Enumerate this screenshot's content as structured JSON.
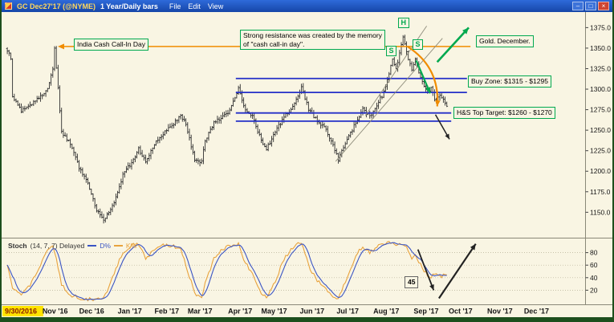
{
  "window": {
    "title_symbol": "GC Dec27'17 (@NYME)",
    "title_period": "1 Year/Daily bars",
    "menus": [
      "File",
      "Edit",
      "View"
    ],
    "controls": {
      "minimize": "–",
      "maximize": "□",
      "close": "×"
    }
  },
  "annotations": {
    "india": "India Cash Call-In Day",
    "resistance_line1": "Strong resistance was created by the memory",
    "resistance_line2": "of \"cash call-in day\".",
    "gold_december": "Gold. December.",
    "buy_zone": "Buy Zone: $1315 - $1295",
    "hs_target": "H&S Top Target: $1260 - $1270",
    "head": "H",
    "shoulder_left": "S",
    "shoulder_right": "S",
    "stoch_value": "45"
  },
  "stoch_panel": {
    "name": "Stoch",
    "params": "(14, 7, 7) Delayed",
    "series": [
      {
        "label": "D%"
      },
      {
        "label": "K%"
      }
    ]
  },
  "colors": {
    "background": "#f9f5e3",
    "titlebar": "#1e57c8",
    "bar": "#2f2f2f",
    "annotation_green": "#00a94f",
    "zone_blue": "#2430c8",
    "orange": "#f08c00",
    "stoch_d": "#3b55c4",
    "stoch_k": "#e8a33d",
    "highlight_yellow": "#ffe400",
    "highlight_text": "#8b1a00",
    "frame_green": "#1d4f1d"
  },
  "chart_data": {
    "type": "ohlc-bars+stochastic",
    "title": "GC Dec27'17 (@NYME) 1 Year/Daily bars",
    "price_axis": {
      "min": 1120,
      "max": 1392,
      "ticks": [
        1375,
        1350,
        1325,
        1300,
        1275,
        1250,
        1225,
        1200,
        1175,
        1150
      ]
    },
    "x_axis": {
      "total_days": 330,
      "data_end_day": 251,
      "labels": [
        {
          "text": "9/30/2016",
          "day": 0,
          "highlight": true
        },
        {
          "text": "Nov '16",
          "day": 21
        },
        {
          "text": "Dec '16",
          "day": 42
        },
        {
          "text": "Jan '17",
          "day": 64
        },
        {
          "text": "Feb '17",
          "day": 85
        },
        {
          "text": "Mar '17",
          "day": 104
        },
        {
          "text": "Apr '17",
          "day": 127
        },
        {
          "text": "May '17",
          "day": 146
        },
        {
          "text": "Jun '17",
          "day": 168
        },
        {
          "text": "Jul '17",
          "day": 189
        },
        {
          "text": "Aug '17",
          "day": 210
        },
        {
          "text": "Sep '17",
          "day": 233
        },
        {
          "text": "Oct '17",
          "day": 253
        },
        {
          "text": "Nov '17",
          "day": 275
        },
        {
          "text": "Dec '17",
          "day": 296
        }
      ]
    },
    "price_anchors": [
      [
        0,
        1348
      ],
      [
        2,
        1336
      ],
      [
        3,
        1292
      ],
      [
        8,
        1274
      ],
      [
        13,
        1281
      ],
      [
        18,
        1289
      ],
      [
        23,
        1301
      ],
      [
        26,
        1325
      ],
      [
        27,
        1351
      ],
      [
        29,
        1300
      ],
      [
        31,
        1248
      ],
      [
        36,
        1234
      ],
      [
        41,
        1205
      ],
      [
        46,
        1187
      ],
      [
        51,
        1152
      ],
      [
        55,
        1140
      ],
      [
        58,
        1150
      ],
      [
        62,
        1168
      ],
      [
        66,
        1196
      ],
      [
        71,
        1211
      ],
      [
        75,
        1227
      ],
      [
        79,
        1211
      ],
      [
        84,
        1234
      ],
      [
        89,
        1246
      ],
      [
        94,
        1256
      ],
      [
        99,
        1268
      ],
      [
        102,
        1258
      ],
      [
        107,
        1214
      ],
      [
        111,
        1211
      ],
      [
        113,
        1238
      ],
      [
        118,
        1259
      ],
      [
        122,
        1265
      ],
      [
        126,
        1271
      ],
      [
        130,
        1288
      ],
      [
        132,
        1301
      ],
      [
        135,
        1278
      ],
      [
        140,
        1267
      ],
      [
        145,
        1238
      ],
      [
        148,
        1227
      ],
      [
        153,
        1248
      ],
      [
        158,
        1266
      ],
      [
        163,
        1278
      ],
      [
        166,
        1292
      ],
      [
        168,
        1303
      ],
      [
        172,
        1275
      ],
      [
        177,
        1261
      ],
      [
        182,
        1251
      ],
      [
        186,
        1232
      ],
      [
        189,
        1214
      ],
      [
        194,
        1239
      ],
      [
        199,
        1259
      ],
      [
        203,
        1275
      ],
      [
        207,
        1267
      ],
      [
        211,
        1281
      ],
      [
        214,
        1292
      ],
      [
        218,
        1318
      ],
      [
        220,
        1338
      ],
      [
        222,
        1324
      ],
      [
        224,
        1344
      ],
      [
        226,
        1363
      ],
      [
        227,
        1355
      ],
      [
        229,
        1337
      ],
      [
        231,
        1325
      ],
      [
        233,
        1338
      ],
      [
        235,
        1321
      ],
      [
        238,
        1305
      ],
      [
        240,
        1296
      ],
      [
        242,
        1303
      ],
      [
        244,
        1287
      ],
      [
        247,
        1293
      ],
      [
        249,
        1286
      ],
      [
        251,
        1278
      ]
    ],
    "stoch": {
      "ticks": [
        80,
        60,
        40,
        20
      ],
      "k_anchors": [
        [
          0,
          62
        ],
        [
          3,
          25
        ],
        [
          8,
          10
        ],
        [
          13,
          28
        ],
        [
          18,
          55
        ],
        [
          23,
          82
        ],
        [
          26,
          92
        ],
        [
          28,
          70
        ],
        [
          31,
          30
        ],
        [
          36,
          12
        ],
        [
          41,
          8
        ],
        [
          46,
          6
        ],
        [
          51,
          5
        ],
        [
          55,
          8
        ],
        [
          58,
          25
        ],
        [
          62,
          55
        ],
        [
          66,
          80
        ],
        [
          71,
          92
        ],
        [
          75,
          94
        ],
        [
          79,
          70
        ],
        [
          84,
          85
        ],
        [
          89,
          92
        ],
        [
          94,
          90
        ],
        [
          99,
          88
        ],
        [
          102,
          60
        ],
        [
          107,
          15
        ],
        [
          111,
          8
        ],
        [
          113,
          30
        ],
        [
          118,
          70
        ],
        [
          122,
          85
        ],
        [
          126,
          90
        ],
        [
          130,
          93
        ],
        [
          132,
          95
        ],
        [
          135,
          70
        ],
        [
          140,
          45
        ],
        [
          145,
          15
        ],
        [
          148,
          8
        ],
        [
          153,
          35
        ],
        [
          158,
          70
        ],
        [
          163,
          88
        ],
        [
          166,
          93
        ],
        [
          168,
          95
        ],
        [
          172,
          60
        ],
        [
          177,
          35
        ],
        [
          182,
          20
        ],
        [
          186,
          10
        ],
        [
          189,
          6
        ],
        [
          194,
          40
        ],
        [
          199,
          75
        ],
        [
          203,
          90
        ],
        [
          207,
          80
        ],
        [
          211,
          88
        ],
        [
          214,
          93
        ],
        [
          218,
          96
        ],
        [
          221,
          94
        ],
        [
          224,
          92
        ],
        [
          226,
          95
        ],
        [
          228,
          88
        ],
        [
          231,
          72
        ],
        [
          233,
          76
        ],
        [
          236,
          60
        ],
        [
          239,
          48
        ],
        [
          241,
          38
        ],
        [
          244,
          48
        ],
        [
          247,
          42
        ],
        [
          251,
          45
        ]
      ]
    },
    "lines": [
      {
        "panel": "price",
        "type": "h",
        "price": 1352,
        "from_day": 33,
        "to_day": 265,
        "color": "#f08c00",
        "width": 1.6,
        "left_arrow": true
      },
      {
        "panel": "price",
        "type": "h",
        "price": 1313,
        "from_day": 131,
        "to_day": 263,
        "color": "#2430c8",
        "width": 1.8
      },
      {
        "panel": "price",
        "type": "h",
        "price": 1296,
        "from_day": 131,
        "to_day": 263,
        "color": "#2430c8",
        "width": 1.8
      },
      {
        "panel": "price",
        "type": "h",
        "price": 1271,
        "from_day": 131,
        "to_day": 254,
        "color": "#2430c8",
        "width": 1.8
      },
      {
        "panel": "price",
        "type": "h",
        "price": 1261,
        "from_day": 131,
        "to_day": 254,
        "color": "#2430c8",
        "width": 1.8
      },
      {
        "panel": "price",
        "type": "seg",
        "from": [
          188,
          1212
        ],
        "to": [
          249,
          1362
        ],
        "color": "#8f8d7c",
        "width": 0.9
      },
      {
        "panel": "price",
        "type": "seg",
        "from": [
          205,
          1268
        ],
        "to": [
          240,
          1377
        ],
        "color": "#8f8d7c",
        "width": 0.9
      }
    ],
    "arrows": [
      {
        "panel": "price",
        "from": [
          229,
          1352
        ],
        "to": [
          246,
          1279
        ],
        "color": "#f08c00",
        "width": 2.2,
        "curve": 0.3
      },
      {
        "panel": "price",
        "from": [
          234,
          1335
        ],
        "to": [
          242,
          1295
        ],
        "color": "#00a94f",
        "width": 2.2
      },
      {
        "panel": "price",
        "from": [
          246,
          1333
        ],
        "to": [
          264,
          1375
        ],
        "color": "#00a94f",
        "width": 2.6
      },
      {
        "panel": "price",
        "from": [
          245,
          1269
        ],
        "to": [
          253,
          1239
        ],
        "color": "#222222",
        "width": 1.5
      },
      {
        "panel": "stoch",
        "from": [
          235,
          85
        ],
        "to": [
          244,
          20
        ],
        "color": "#222222",
        "width": 1.8
      },
      {
        "panel": "stoch",
        "from": [
          247,
          7
        ],
        "to": [
          268,
          94
        ],
        "color": "#222222",
        "width": 2.2
      }
    ]
  }
}
